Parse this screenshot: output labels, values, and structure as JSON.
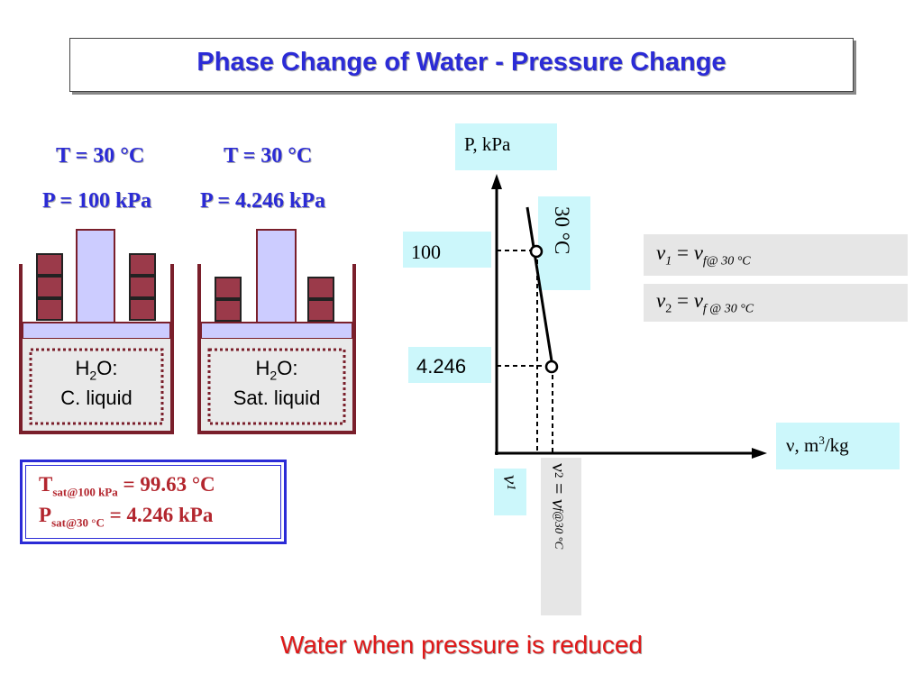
{
  "title": "Phase Change of Water - Pressure Change",
  "left_state": {
    "temperature": "T = 30 °C",
    "pressure": "P = 100 kPa",
    "substance": "H",
    "substance_sub": "2",
    "substance_rest": "O:",
    "phase": "C. liquid"
  },
  "right_state": {
    "temperature": "T = 30 °C",
    "pressure": "P = 4.246 kPa",
    "substance": "H",
    "substance_sub": "2",
    "substance_rest": "O:",
    "phase": "Sat. liquid"
  },
  "saturation_box": {
    "line1_symbol": "T",
    "line1_sub": "sat@100 kPa",
    "line1_value": " = 99.63 °C",
    "line2_symbol": "P",
    "line2_sub": "sat@30 °C",
    "line2_value": " = 4.246 kPa"
  },
  "diagram": {
    "y_axis_label": "P, kPa",
    "x_axis_label_v": "ν, m",
    "x_axis_label_exp": "3",
    "x_axis_label_unit": "/kg",
    "pressure_high": "100",
    "pressure_low": "4.246",
    "isotherm_label": "30 °C",
    "v1_label": "ν",
    "v1_sub": "1",
    "v2_label_a": "ν",
    "v2_label_sub": "2",
    "v2_label_b": " = ",
    "v2_label_c": "ν",
    "v2_label_csub": "f@30 °C"
  },
  "equations": [
    {
      "lhs": "ν",
      "lhs_sub": "1",
      "eq": " = ",
      "rhs": "ν",
      "rhs_sub": "f@ 30 °C"
    },
    {
      "lhs": "ν",
      "lhs_sub": "2",
      "eq": " = ",
      "rhs": "ν",
      "rhs_sub": "f @ 30 °C"
    }
  ],
  "footer": "Water when pressure is reduced",
  "colors": {
    "title": "#2b2bd6",
    "cylinder": "#7a1f2b",
    "weight": "#9b3a4a",
    "piston": "#ccccff",
    "saturation_text": "#b3262e",
    "footer": "#e01818"
  }
}
